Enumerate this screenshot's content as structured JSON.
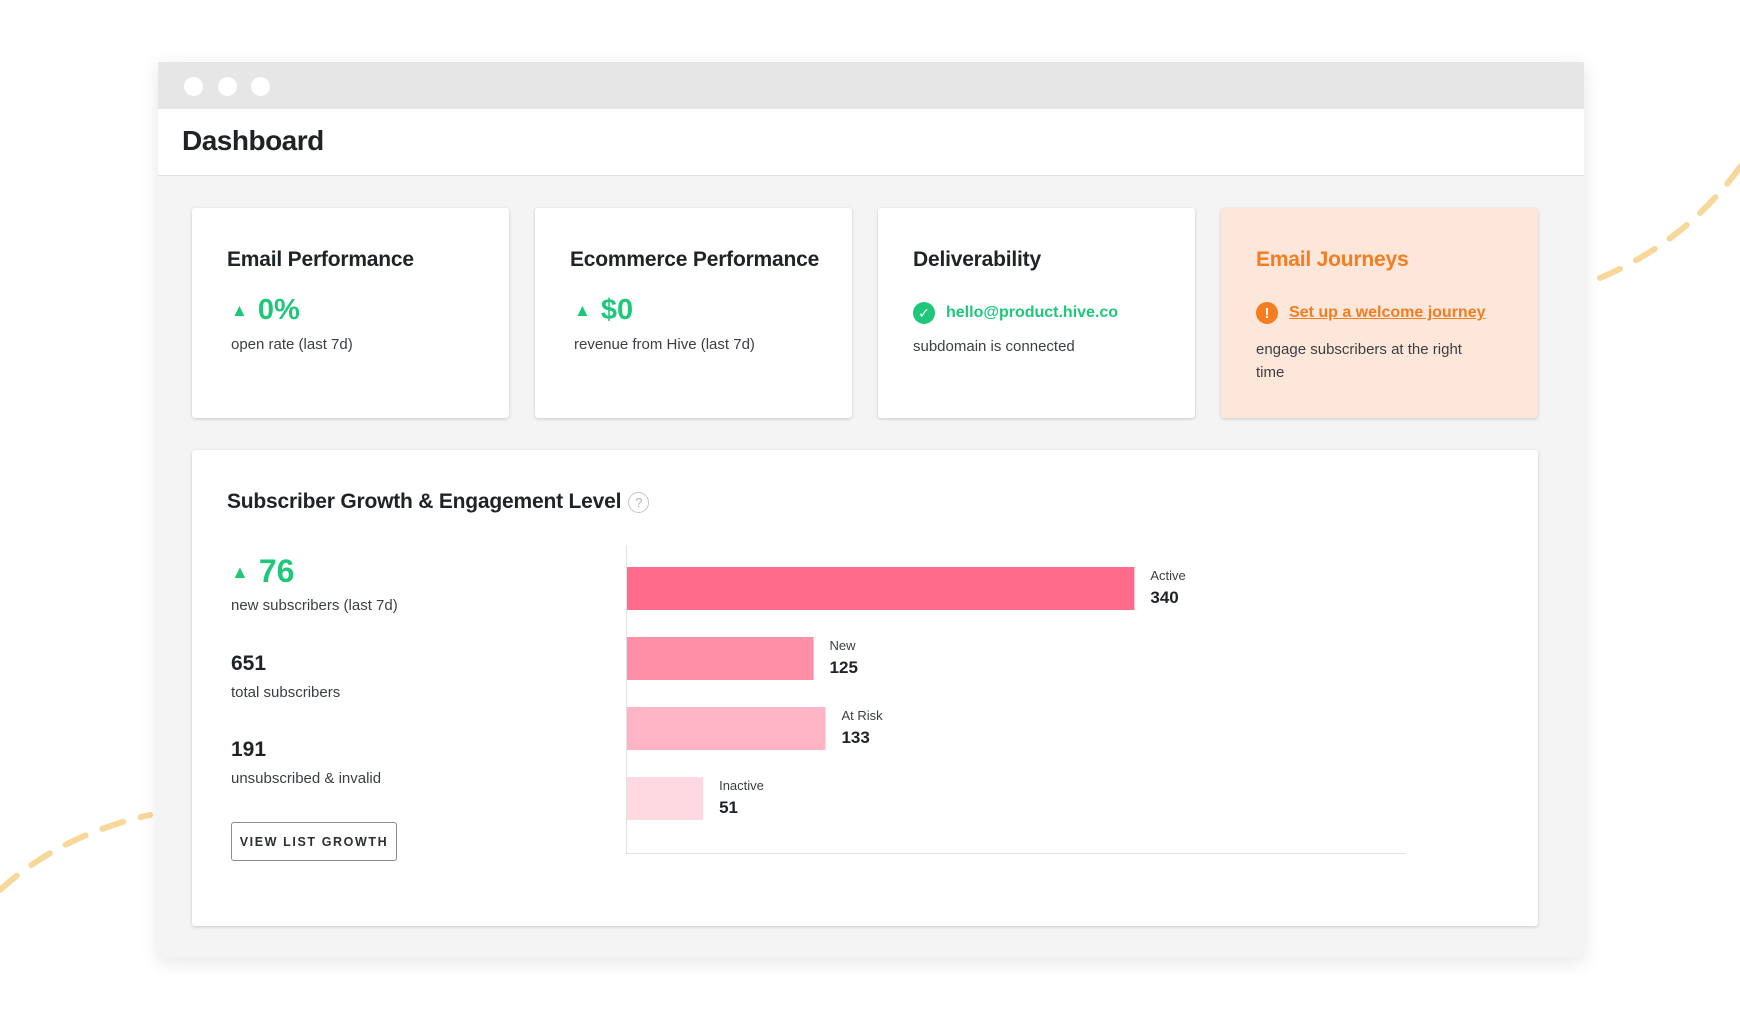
{
  "colors": {
    "accent_green": "#1ec77a",
    "accent_orange": "#f57c1f",
    "journey_card_bg": "#fde6da",
    "bar_colors": [
      "#ff6b8b",
      "#ff8fa6",
      "#ffb4c6",
      "#ffd9e2"
    ],
    "decoration_dash": "#f7d79a"
  },
  "header": {
    "title": "Dashboard"
  },
  "cards": {
    "email": {
      "title": "Email Performance",
      "value": "0%",
      "sub": "open rate (last 7d)",
      "trend_icon": "triangle-up-icon"
    },
    "ecommerce": {
      "title": "Ecommerce Performance",
      "value": "$0",
      "sub": "revenue from Hive (last 7d)",
      "trend_icon": "triangle-up-icon"
    },
    "deliverability": {
      "title": "Deliverability",
      "domain": "hello@product.hive.co",
      "sub": "subdomain is connected",
      "status_icon": "check-circle-icon"
    },
    "journeys": {
      "title": "Email Journeys",
      "link": "Set up a welcome journey",
      "sub": "engage subscribers at the right time",
      "status_icon": "warning-circle-icon"
    }
  },
  "subscriber_panel": {
    "title": "Subscriber Growth & Engagement Level",
    "help_icon": "question-circle-icon",
    "new_subscribers": "76",
    "new_subscribers_label": "new subscribers (last 7d)",
    "total": "651",
    "total_label": "total subscribers",
    "unsubscribed": "191",
    "unsubscribed_label": "unsubscribed & invalid",
    "button_label": "VIEW LIST GROWTH"
  },
  "chart_data": {
    "type": "bar",
    "orientation": "horizontal",
    "categories": [
      "Active",
      "New",
      "At Risk",
      "Inactive"
    ],
    "values": [
      340,
      125,
      133,
      51
    ],
    "xlim": [
      0,
      520
    ],
    "grid": false,
    "legend": "none"
  }
}
